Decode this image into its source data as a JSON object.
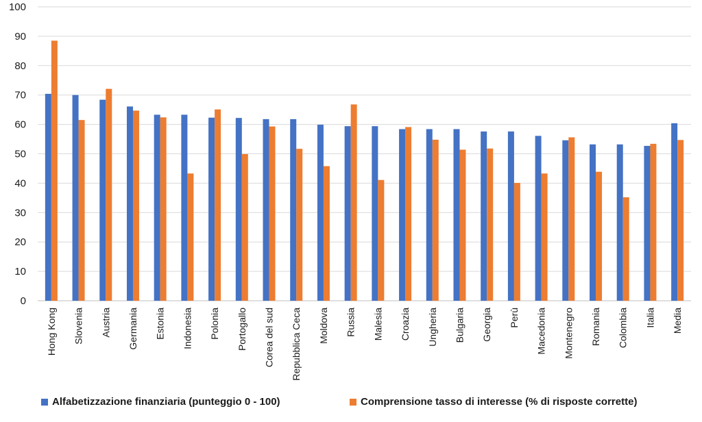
{
  "chart_data": {
    "type": "bar",
    "categories": [
      "Hong Kong",
      "Slovenia",
      "Austria",
      "Germania",
      "Estonia",
      "Indonesia",
      "Polonia",
      "Portogallo",
      "Corea del sud",
      "Repubblica Ceca",
      "Moldova",
      "Russia",
      "Malesia",
      "Croazia",
      "Ungheria",
      "Bulgaria",
      "Georgia",
      "Perù",
      "Macedonia",
      "Montenegro",
      "Romania",
      "Colombia",
      "Italia",
      "Media"
    ],
    "series": [
      {
        "name": "Alfabetizzazione finanziaria (punteggio 0 - 100)",
        "color": "#4472c4",
        "values": [
          70.4,
          70.0,
          68.4,
          66.1,
          63.3,
          63.3,
          62.3,
          62.2,
          61.8,
          61.8,
          59.9,
          59.4,
          59.4,
          58.4,
          58.4,
          58.4,
          57.6,
          57.6,
          56.1,
          54.6,
          53.2,
          53.2,
          52.7,
          60.4
        ]
      },
      {
        "name": "Comprensione tasso di interesse (% di risposte corrette)",
        "color": "#ed7d31",
        "values": [
          88.5,
          61.5,
          72.1,
          64.7,
          62.4,
          43.3,
          65.1,
          49.9,
          59.3,
          51.7,
          45.8,
          66.8,
          41.1,
          59.1,
          54.8,
          51.4,
          51.8,
          40.1,
          43.3,
          55.6,
          43.9,
          35.2,
          53.4,
          54.7
        ]
      }
    ],
    "yticks": [
      "0",
      "10",
      "20",
      "30",
      "40",
      "50",
      "60",
      "70",
      "80",
      "90",
      "100"
    ],
    "ylim": [
      0,
      100
    ],
    "xlabel": "",
    "ylabel": "",
    "grid": true,
    "legend_position": "bottom"
  }
}
